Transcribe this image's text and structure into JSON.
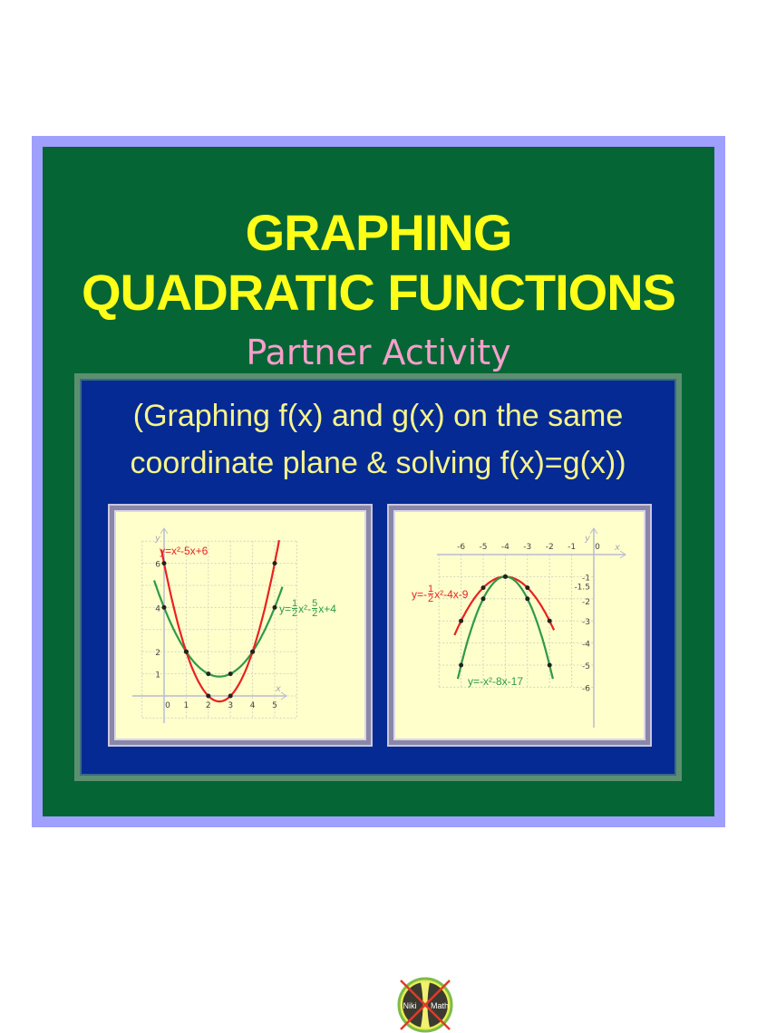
{
  "title": {
    "line1": "GRAPHING",
    "line2": "QUADRATIC FUNCTIONS"
  },
  "subtitle": "Partner Activity",
  "description": {
    "line1": "(Graphing f(x) and g(x) on the same",
    "line2": "coordinate plane & solving f(x)=g(x))"
  },
  "colors": {
    "border": "#9f9ffd",
    "background": "#066534",
    "title": "#ffff1a",
    "subtitle": "#f59fcb",
    "panel": "#052a94",
    "text": "#f7f48a",
    "red_curve": "#e8231f",
    "green_curve": "#2e9a48"
  },
  "graph_left": {
    "axis_x": "x",
    "axis_y": "y",
    "x_ticks": [
      "0",
      "1",
      "2",
      "3",
      "4",
      "5"
    ],
    "y_ticks": [
      "1",
      "2",
      "4",
      "6"
    ],
    "eq_red": "y=x²-5x+6",
    "eq_green": {
      "prefix": "y=",
      "f1_num": "1",
      "f1_den": "2",
      "mid": "x²-",
      "f2_num": "5",
      "f2_den": "2",
      "suffix": "x+4"
    },
    "red_points": [
      [
        0,
        6
      ],
      [
        1,
        2
      ],
      [
        2,
        0
      ],
      [
        3,
        0
      ],
      [
        4,
        2
      ],
      [
        5,
        6
      ]
    ],
    "green_points": [
      [
        0,
        4
      ],
      [
        1,
        2
      ],
      [
        2,
        1
      ],
      [
        3,
        1
      ],
      [
        4,
        2
      ],
      [
        5,
        4
      ]
    ]
  },
  "graph_right": {
    "axis_x": "x",
    "axis_y": "y",
    "x_ticks": [
      "-6",
      "-5",
      "-4",
      "-3",
      "-2",
      "-1",
      "0"
    ],
    "y_ticks": [
      "-1",
      "-1.5",
      "-2",
      "-3",
      "-4",
      "-5",
      "-6"
    ],
    "eq_red": {
      "prefix": "y=-",
      "f1_num": "1",
      "f1_den": "2",
      "suffix": "x²-4x-9"
    },
    "eq_green": "y=-x²-8x-17",
    "red_points": [
      [
        -6,
        -3
      ],
      [
        -5,
        -1.5
      ],
      [
        -4,
        -1
      ],
      [
        -3,
        -1.5
      ],
      [
        -2,
        -3
      ]
    ],
    "green_points": [
      [
        -6,
        -5
      ],
      [
        -5,
        -2
      ],
      [
        -4,
        -1
      ],
      [
        -3,
        -2
      ],
      [
        -2,
        -5
      ]
    ]
  },
  "logo": {
    "left": "Niki",
    "right": "Math"
  }
}
